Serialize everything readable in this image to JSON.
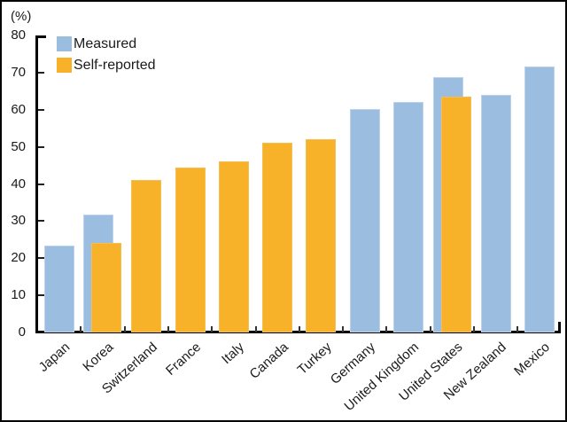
{
  "figure": {
    "unit_label": "(%)"
  },
  "legend": [
    {
      "label": "Measured",
      "color": "#9BBEE0",
      "border": "#BCD3EB"
    },
    {
      "label": "Self-reported",
      "color": "#F7B22A",
      "border": "#F3BE52"
    }
  ],
  "chart_data": {
    "type": "bar",
    "title": "",
    "xlabel": "",
    "ylabel": "(%)",
    "ylim": [
      0,
      80
    ],
    "yticks": [
      0,
      10,
      20,
      30,
      40,
      50,
      60,
      70,
      80
    ],
    "grid": false,
    "legend_position": "top-left",
    "note": "Overlapping paired bars for countries with both measured and self-reported values",
    "categories": [
      "Japan",
      "Korea",
      "Switzerland",
      "France",
      "Italy",
      "Canada",
      "Turkey",
      "Germany",
      "United Kingdom",
      "United States",
      "New Zealand",
      "Mexico"
    ],
    "series": [
      {
        "name": "Measured",
        "color": "#9BBEE0",
        "border": "#BCD3EB",
        "values": [
          23.4,
          31.7,
          null,
          null,
          null,
          null,
          null,
          60.1,
          62.0,
          68.8,
          64.0,
          71.7
        ]
      },
      {
        "name": "Self-reported",
        "color": "#F7B22A",
        "border": "#F3BE52",
        "values": [
          null,
          24.1,
          41.0,
          44.5,
          46.0,
          51.0,
          52.0,
          null,
          null,
          63.6,
          null,
          null
        ]
      }
    ]
  }
}
